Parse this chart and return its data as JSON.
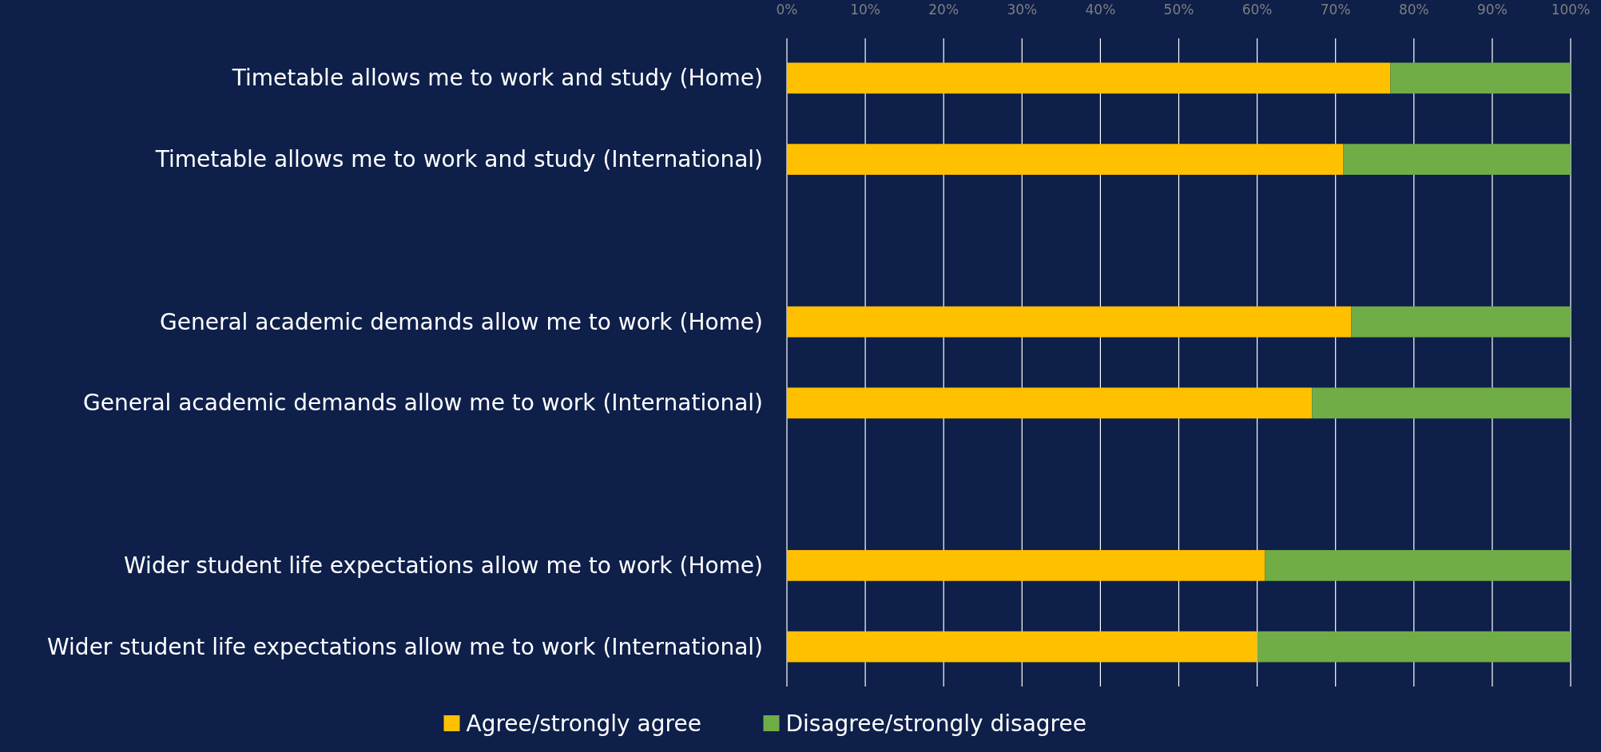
{
  "chart_data": {
    "type": "bar",
    "orientation": "horizontal",
    "stacked": true,
    "categories": [
      "Timetable allows me to work and study (Home)",
      "Timetable allows me to work and study (International)",
      null,
      "General academic demands allow me to work (Home)",
      "General academic demands allow me to work (International)",
      null,
      "Wider student life expectations allow me to work (Home)",
      "Wider student life expectations allow me to work (International)"
    ],
    "series": [
      {
        "name": "Agree/strongly agree",
        "color": "#ffc000",
        "values": [
          77,
          71,
          null,
          72,
          67,
          null,
          61,
          60
        ]
      },
      {
        "name": "Disagree/strongly disagree",
        "color": "#70ad47",
        "values": [
          23,
          29,
          null,
          28,
          33,
          null,
          39,
          40
        ]
      }
    ],
    "xlim": [
      0,
      100
    ],
    "xticks": [
      {
        "value": 0,
        "label": "0%"
      },
      {
        "value": 10,
        "label": "10%"
      },
      {
        "value": 20,
        "label": "20%"
      },
      {
        "value": 30,
        "label": "30%"
      },
      {
        "value": 40,
        "label": "40%"
      },
      {
        "value": 50,
        "label": "50%"
      },
      {
        "value": 60,
        "label": "60%"
      },
      {
        "value": 70,
        "label": "70%"
      },
      {
        "value": 80,
        "label": "80%"
      },
      {
        "value": 90,
        "label": "90%"
      },
      {
        "value": 100,
        "label": "100%"
      }
    ],
    "grid": "x",
    "legend": "bottom"
  }
}
